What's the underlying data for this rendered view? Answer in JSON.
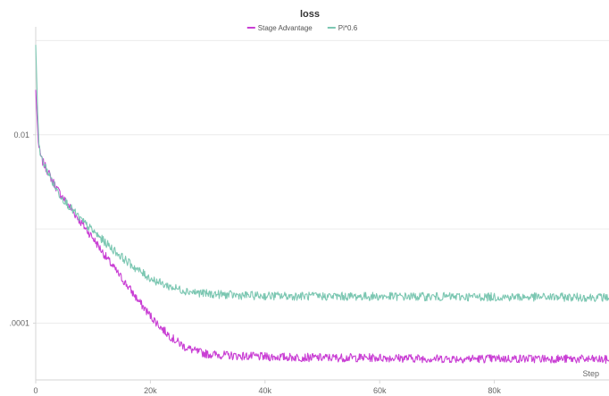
{
  "chart_data": {
    "type": "line",
    "title": "loss",
    "xlabel": "Step",
    "ylabel": "",
    "y_scale": "log",
    "xlim": [
      0,
      100000
    ],
    "ylim": [
      2.5e-05,
      0.14
    ],
    "x_ticks": [
      0,
      20000,
      40000,
      60000,
      80000
    ],
    "x_tick_labels": [
      "0",
      "20k",
      "40k",
      "60k",
      "80k"
    ],
    "y_ticks": [
      0.01,
      0.0001
    ],
    "y_tick_labels": [
      "0.01",
      ".0001"
    ],
    "grid": true,
    "legend_position": "top-center",
    "series": [
      {
        "name": "Stage Advantage",
        "color": "#c93ed4",
        "x": [
          0,
          500,
          1000,
          2000,
          3000,
          4000,
          6000,
          8000,
          10000,
          12000,
          14000,
          16000,
          18000,
          20000,
          22000,
          24000,
          26000,
          28000,
          30000,
          35000,
          40000,
          50000,
          60000,
          70000,
          80000,
          90000,
          100000
        ],
        "y": [
          0.03,
          0.0075,
          0.0055,
          0.0042,
          0.0032,
          0.0025,
          0.0017,
          0.00115,
          0.0008,
          0.00053,
          0.00036,
          0.00025,
          0.00017,
          0.00012,
          8.8e-05,
          6.8e-05,
          5.6e-05,
          5e-05,
          4.7e-05,
          4.5e-05,
          4.4e-05,
          4.3e-05,
          4.3e-05,
          4.2e-05,
          4.2e-05,
          4.2e-05,
          4.1e-05
        ]
      },
      {
        "name": "Pi*0.6",
        "color": "#7cc7b2",
        "x": [
          0,
          500,
          1000,
          2000,
          3000,
          4000,
          6000,
          8000,
          10000,
          12000,
          14000,
          16000,
          18000,
          20000,
          22000,
          24000,
          26000,
          28000,
          30000,
          35000,
          40000,
          50000,
          60000,
          70000,
          80000,
          90000,
          100000
        ],
        "y": [
          0.09,
          0.0085,
          0.0055,
          0.0042,
          0.0031,
          0.0024,
          0.0017,
          0.00123,
          0.00095,
          0.00073,
          0.00057,
          0.00045,
          0.00036,
          0.0003,
          0.000262,
          0.000238,
          0.000222,
          0.000212,
          0.000205,
          0.000198,
          0.000195,
          0.000193,
          0.000192,
          0.000191,
          0.00019,
          0.000189,
          0.000188
        ]
      }
    ]
  }
}
